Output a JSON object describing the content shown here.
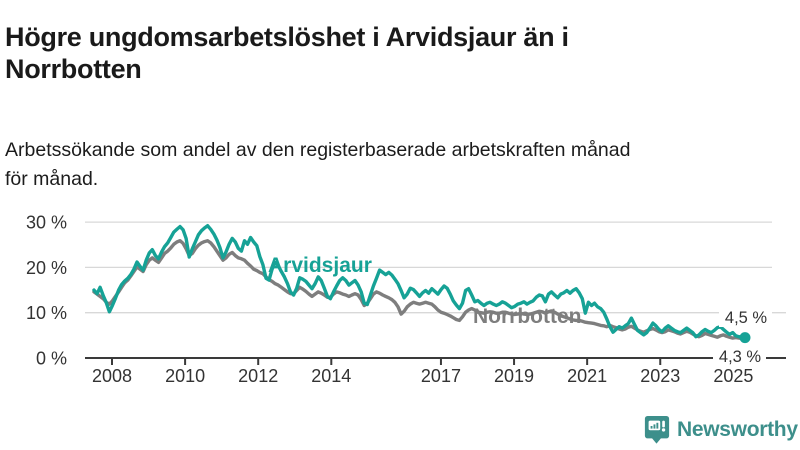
{
  "header": {
    "title": "Högre ungdomsarbetslöshet i Arvidsjaur än i Norrbotten",
    "title_line1": "Högre ungdomsarbetslöshet i Arvidsjaur än i",
    "title_line2": "Norrbotten",
    "subtitle": "Arbetssökande som andel av den registerbaserade arbetskraften månad för månad.",
    "subtitle_line1": "Arbetssökande som andel av den registerbaserade arbetskraften månad",
    "subtitle_line2": "för månad."
  },
  "footer": {
    "logo_text": "Newsworthy"
  },
  "colors": {
    "arvidsjaur": "#16a296",
    "norrbotten": "#7e7e7e",
    "grid": "#d8d8d8",
    "axis": "#3a3a3a",
    "tick_text": "#333333",
    "title_text": "#1a1a1a",
    "logo": "#3d8f8b"
  },
  "chart_data": {
    "type": "line",
    "x_unit": "month",
    "x_start": "2008-01",
    "x_end": "2025-09",
    "x_tick_labels": [
      "2008",
      "2010",
      "2012",
      "2014",
      "2017",
      "2019",
      "2021",
      "2023",
      "2025"
    ],
    "x_tick_years": [
      2008,
      2010,
      2012,
      2014,
      2017,
      2019,
      2021,
      2023,
      2025
    ],
    "y_tick_labels": [
      "0 %",
      "10 %",
      "20 %",
      "30 %"
    ],
    "y_ticks": [
      0,
      10,
      20,
      30
    ],
    "ylim": [
      0,
      32
    ],
    "grid": true,
    "series": [
      {
        "name": "Arvidsjaur",
        "color": "#16a296",
        "end_label": "4,5 %",
        "end_value": 4.5,
        "values": [
          15.0,
          14.2,
          15.6,
          13.8,
          12.2,
          10.2,
          11.6,
          13.2,
          15.0,
          16.2,
          17.0,
          17.6,
          18.4,
          19.6,
          21.2,
          20.2,
          19.4,
          21.6,
          23.2,
          23.9,
          22.6,
          21.9,
          23.4,
          24.6,
          25.4,
          26.6,
          27.8,
          28.4,
          29.0,
          28.3,
          26.4,
          22.3,
          24.1,
          25.6,
          27.2,
          28.1,
          28.7,
          29.2,
          28.4,
          27.4,
          26.1,
          24.4,
          22.1,
          23.4,
          25.1,
          26.4,
          25.6,
          24.2,
          23.6,
          25.9,
          25.1,
          26.6,
          25.6,
          24.8,
          22.4,
          20.6,
          17.6,
          17.2,
          19.6,
          21.1,
          20.4,
          19.1,
          17.9,
          16.4,
          14.6,
          13.9,
          15.4,
          17.7,
          17.4,
          16.9,
          16.1,
          15.3,
          16.4,
          17.9,
          17.1,
          15.4,
          13.6,
          13.1,
          14.6,
          15.9,
          17.1,
          17.7,
          17.1,
          16.1,
          16.6,
          17.1,
          16.1,
          14.6,
          12.1,
          11.8,
          13.9,
          15.9,
          17.6,
          19.4,
          18.9,
          18.4,
          18.9,
          18.3,
          17.4,
          16.4,
          14.9,
          13.3,
          14.1,
          15.4,
          15.1,
          14.4,
          13.6,
          14.4,
          14.9,
          14.3,
          15.3,
          14.7,
          14.1,
          15.1,
          15.9,
          15.4,
          14.1,
          12.6,
          11.7,
          10.9,
          12.1,
          14.9,
          15.3,
          13.9,
          12.4,
          12.7,
          12.1,
          11.6,
          12.1,
          12.3,
          11.9,
          11.6,
          11.9,
          12.4,
          12.1,
          11.6,
          11.1,
          11.4,
          11.9,
          12.1,
          12.4,
          11.9,
          12.3,
          12.6,
          13.4,
          13.9,
          13.7,
          12.4,
          14.1,
          14.6,
          13.9,
          13.3,
          14.1,
          14.4,
          14.9,
          14.3,
          14.9,
          15.3,
          14.4,
          13.1,
          9.9,
          12.3,
          11.6,
          12.1,
          11.3,
          10.9,
          10.1,
          8.6,
          6.9,
          5.7,
          6.3,
          6.9,
          6.6,
          7.1,
          7.6,
          8.8,
          7.4,
          6.1,
          5.6,
          5.1,
          5.6,
          6.6,
          7.7,
          7.1,
          6.3,
          5.8,
          6.6,
          7.1,
          6.6,
          6.1,
          5.8,
          5.6,
          6.1,
          6.6,
          6.1,
          5.6,
          4.7,
          5.1,
          5.8,
          6.3,
          5.9,
          5.6,
          6.1,
          6.7,
          6.9,
          6.3,
          5.7,
          5.2,
          5.6,
          4.9,
          4.7,
          4.6,
          4.5
        ]
      },
      {
        "name": "Norrbotten",
        "color": "#7e7e7e",
        "end_label": "4,3 %",
        "end_value": 4.3,
        "values": [
          14.6,
          14.1,
          13.6,
          13.1,
          12.3,
          11.9,
          12.6,
          13.6,
          14.6,
          15.6,
          16.6,
          17.2,
          18.1,
          19.1,
          20.1,
          19.6,
          19.1,
          20.6,
          21.6,
          22.1,
          21.6,
          21.1,
          22.1,
          23.1,
          23.6,
          24.3,
          25.1,
          25.6,
          25.9,
          25.3,
          24.1,
          22.6,
          23.1,
          24.1,
          24.9,
          25.4,
          25.7,
          25.9,
          25.4,
          24.6,
          23.6,
          22.6,
          21.6,
          22.1,
          22.9,
          23.3,
          22.6,
          22.1,
          21.9,
          21.6,
          20.9,
          20.3,
          19.6,
          19.3,
          18.9,
          18.6,
          17.9,
          17.3,
          16.9,
          16.4,
          16.1,
          15.6,
          15.1,
          14.6,
          14.2,
          14.2,
          14.9,
          15.6,
          15.2,
          14.7,
          14.1,
          13.6,
          14.1,
          14.6,
          14.3,
          13.9,
          13.4,
          13.4,
          14.1,
          14.6,
          14.4,
          14.1,
          13.9,
          13.6,
          13.9,
          14.2,
          13.9,
          12.9,
          11.6,
          12.1,
          13.1,
          14.1,
          14.6,
          14.3,
          13.9,
          13.6,
          13.3,
          12.9,
          12.3,
          11.3,
          9.7,
          10.3,
          11.3,
          11.9,
          12.3,
          12.1,
          11.9,
          12.1,
          12.3,
          12.1,
          11.9,
          11.3,
          10.6,
          10.1,
          9.9,
          9.6,
          9.3,
          8.9,
          8.5,
          8.3,
          9.1,
          10.1,
          10.6,
          10.9,
          10.6,
          10.1,
          10.0,
          9.9,
          10.1,
          10.2,
          10.1,
          9.9,
          9.9,
          10.1,
          10.1,
          9.9,
          9.7,
          9.6,
          9.7,
          9.9,
          9.7,
          9.6,
          9.7,
          9.9,
          10.1,
          10.3,
          10.2,
          9.9,
          10.2,
          10.4,
          10.1,
          9.7,
          9.4,
          9.1,
          8.9,
          8.6,
          8.4,
          8.3,
          8.3,
          8.1,
          7.9,
          7.8,
          7.7,
          7.6,
          7.4,
          7.2,
          7.1,
          6.9,
          7.2,
          6.9,
          6.7,
          6.4,
          6.2,
          6.4,
          6.8,
          7.0,
          6.6,
          6.2,
          5.9,
          5.7,
          6.0,
          6.3,
          6.5,
          6.2,
          5.8,
          5.6,
          5.8,
          6.2,
          6.0,
          5.8,
          5.5,
          5.3,
          5.6,
          5.9,
          5.7,
          5.3,
          4.9,
          4.7,
          5.0,
          5.4,
          5.2,
          5.0,
          4.8,
          4.6,
          4.9,
          5.1,
          4.8,
          4.6,
          4.4,
          4.5,
          4.4,
          4.3,
          4.3
        ]
      }
    ]
  }
}
